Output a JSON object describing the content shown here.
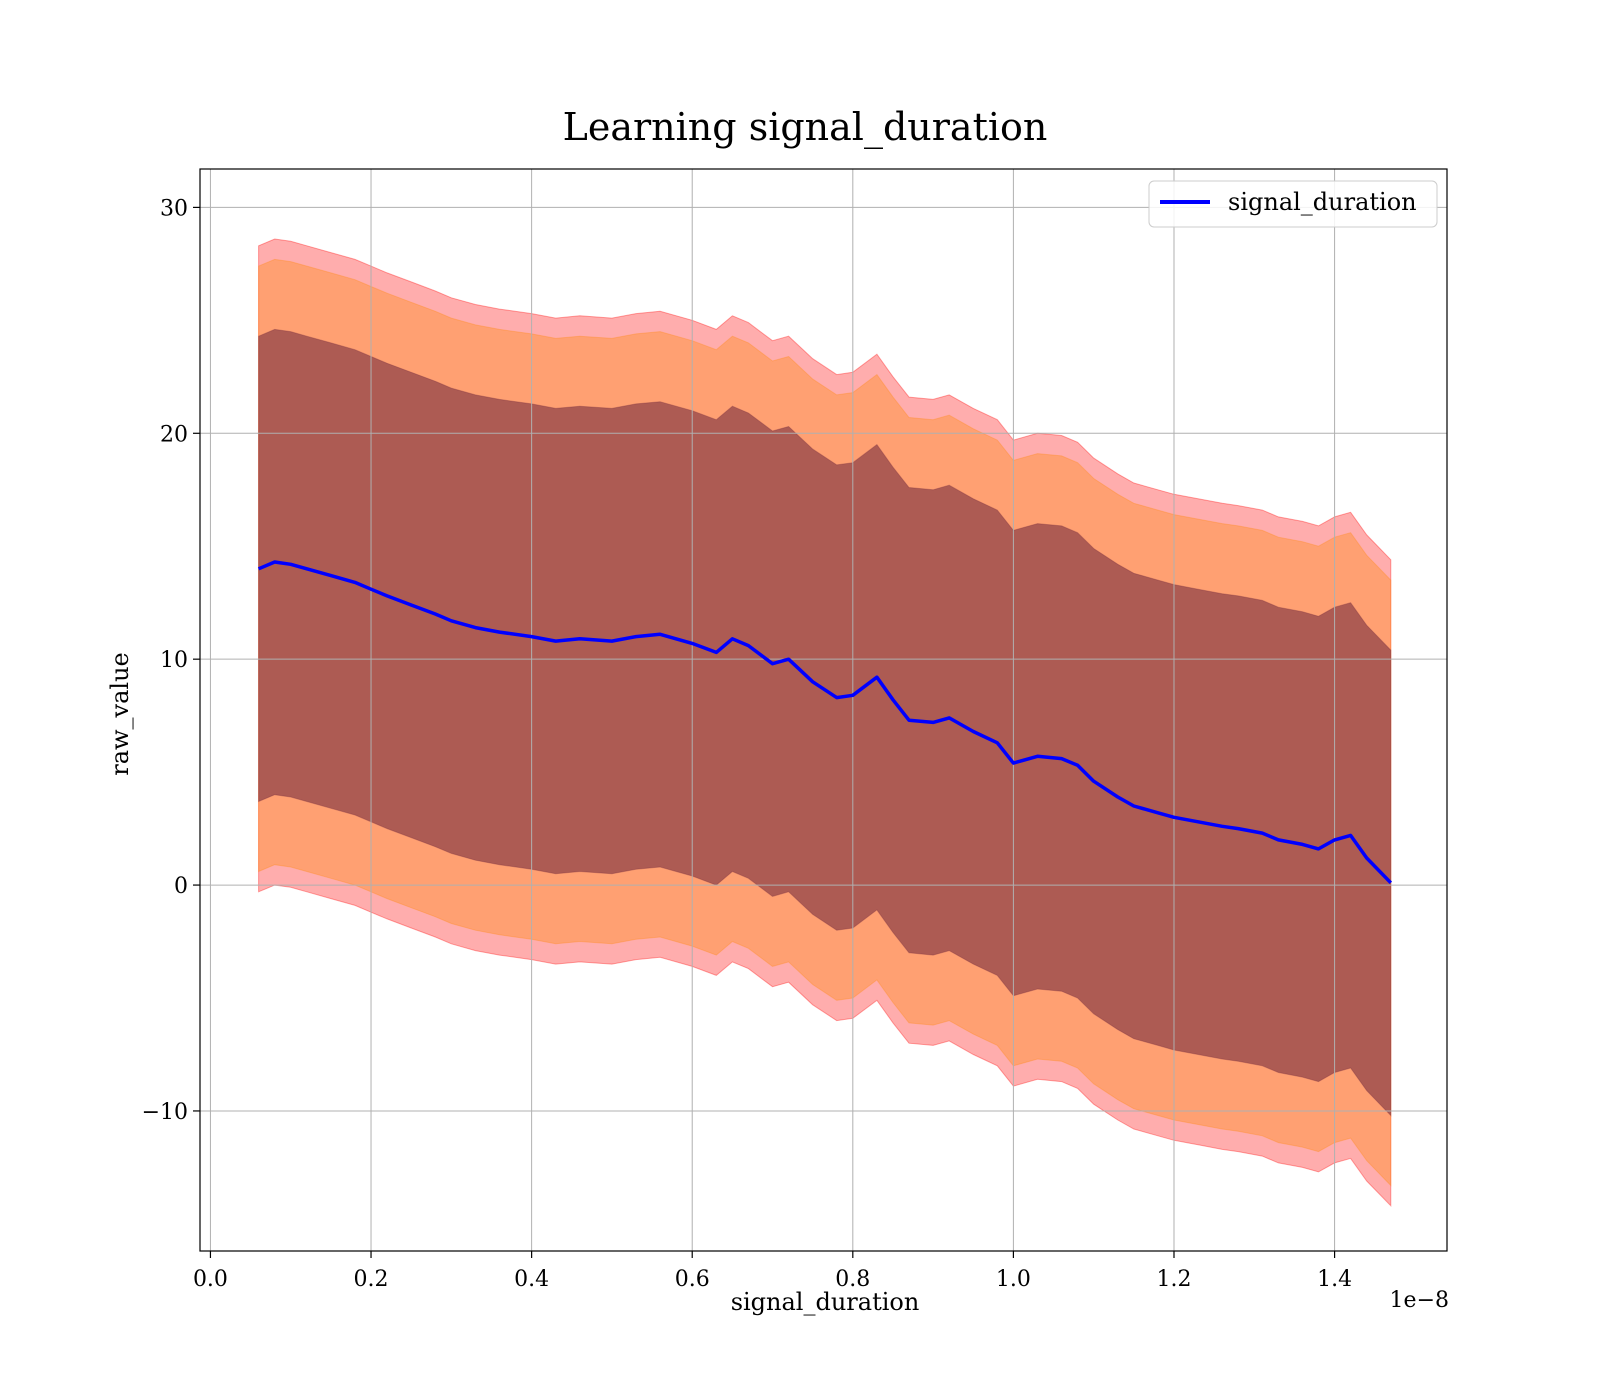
{
  "chart_data": {
    "type": "line",
    "title": "Learning signal_duration",
    "xlabel": "signal_duration",
    "ylabel": "raw_value",
    "x_offset_label": "1e−8",
    "xlim": [
      -0.013,
      1.54
    ],
    "ylim": [
      -16.2,
      31.7
    ],
    "x_ticks": [
      0.0,
      0.2,
      0.4,
      0.6,
      0.8,
      1.0,
      1.2,
      1.4
    ],
    "x_tick_labels": [
      "0.0",
      "0.2",
      "0.4",
      "0.6",
      "0.8",
      "1.0",
      "1.2",
      "1.4"
    ],
    "y_ticks": [
      -10,
      0,
      10,
      20,
      30
    ],
    "y_tick_labels": [
      "−10",
      "0",
      "10",
      "20",
      "30"
    ],
    "grid": true,
    "legend_position": "top-right",
    "colors": {
      "mean_line": "#0000ff",
      "band_outer": "#ff0000",
      "band_middle": "#ff8c1a",
      "band_inner": "#7a3040",
      "grid": "#b0b0b0"
    },
    "series": [
      {
        "name": "signal_duration",
        "x": [
          0.06,
          0.08,
          0.1,
          0.12,
          0.15,
          0.18,
          0.2,
          0.22,
          0.25,
          0.28,
          0.3,
          0.33,
          0.36,
          0.4,
          0.43,
          0.46,
          0.5,
          0.53,
          0.56,
          0.6,
          0.63,
          0.65,
          0.67,
          0.7,
          0.72,
          0.75,
          0.78,
          0.8,
          0.83,
          0.85,
          0.87,
          0.9,
          0.92,
          0.95,
          0.98,
          1.0,
          1.03,
          1.06,
          1.08,
          1.1,
          1.13,
          1.15,
          1.18,
          1.2,
          1.23,
          1.26,
          1.28,
          1.31,
          1.33,
          1.36,
          1.38,
          1.4,
          1.42,
          1.44,
          1.47
        ],
        "y": [
          14.0,
          14.3,
          14.2,
          14.0,
          13.7,
          13.4,
          13.1,
          12.8,
          12.4,
          12.0,
          11.7,
          11.4,
          11.2,
          11.0,
          10.8,
          10.9,
          10.8,
          11.0,
          11.1,
          10.7,
          10.3,
          10.9,
          10.6,
          9.8,
          10.0,
          9.0,
          8.3,
          8.4,
          9.2,
          8.2,
          7.3,
          7.2,
          7.4,
          6.8,
          6.3,
          5.4,
          5.7,
          5.6,
          5.3,
          4.6,
          3.9,
          3.5,
          3.2,
          3.0,
          2.8,
          2.6,
          2.5,
          2.3,
          2.0,
          1.8,
          1.6,
          2.0,
          2.2,
          1.2,
          0.1
        ]
      }
    ],
    "bands": [
      {
        "name": "outer",
        "upper_offset": 14.3,
        "lower_offset": -14.3
      },
      {
        "name": "middle",
        "upper_offset": 13.4,
        "lower_offset": -13.4
      },
      {
        "name": "inner",
        "upper_offset": 10.3,
        "lower_offset": -10.3
      }
    ]
  }
}
